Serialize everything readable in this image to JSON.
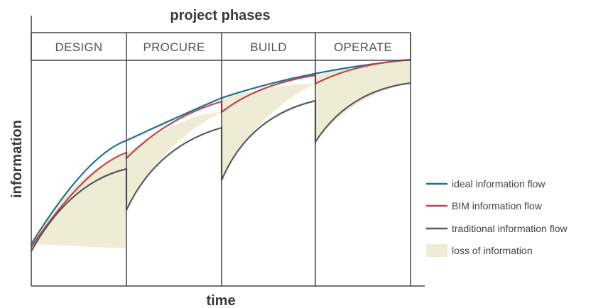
{
  "diagram": {
    "title": "project phases",
    "phases": [
      "DESIGN",
      "PROCURE",
      "BUILD",
      "OPERATE"
    ],
    "x_label": "time",
    "y_label": "information",
    "legend": [
      {
        "label": "ideal information flow",
        "color": "#1f6f94",
        "kind": "line"
      },
      {
        "label": "BIM information flow",
        "color": "#c0444a",
        "kind": "line"
      },
      {
        "label": "traditional information flow",
        "color": "#5a5a5a",
        "kind": "line"
      },
      {
        "label": "loss of information",
        "color": "#efecd6",
        "kind": "swatch"
      }
    ]
  }
}
